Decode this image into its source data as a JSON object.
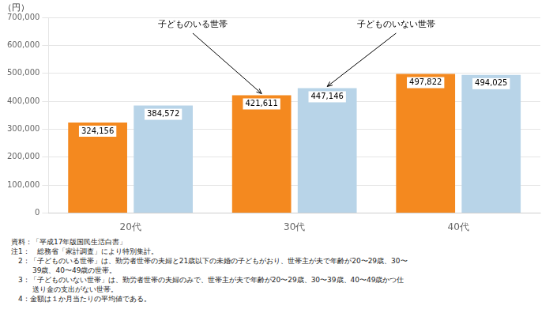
{
  "chart_data": {
    "type": "bar",
    "categories": [
      "20代",
      "30代",
      "40代"
    ],
    "series": [
      {
        "name": "子どものいる世帯",
        "color": "#F4891F",
        "values": [
          324156,
          421611,
          497822
        ],
        "value_labels": [
          "324,156",
          "421,611",
          "497,822"
        ]
      },
      {
        "name": "子どものいない世帯",
        "color": "#B8D4E8",
        "values": [
          384572,
          447146,
          494025
        ],
        "value_labels": [
          "384,572",
          "447,146",
          "494,025"
        ]
      }
    ],
    "ylabel": "（円）",
    "ylim": [
      0,
      700000
    ],
    "yticks": [
      0,
      {
        "value": 100000,
        "label": "100,000"
      },
      {
        "value": 200000,
        "label": "200,000"
      },
      {
        "value": 300000,
        "label": "300,000"
      },
      {
        "value": 400000,
        "label": "400,000"
      },
      {
        "value": 500000,
        "label": "500,000"
      },
      {
        "value": 600000,
        "label": "600,000"
      },
      {
        "value": 700000,
        "label": "700,000"
      }
    ],
    "grid": true,
    "data_labels": true,
    "annotations": [
      {
        "text": "子どものいる世帯",
        "category": "30代",
        "series": "子どものいる世帯"
      },
      {
        "text": "子どものいない世帯",
        "category": "30代",
        "series": "子どものいない世帯"
      }
    ],
    "footnotes": [
      "資料：「平成17年版国民生活白書」",
      "注1：　総務省「家計調査」により特別集計。",
      "　2：「子どものいる世帯」は、勤労者世帯の夫婦と21歳以下の未婚の子どもがおり、世帯主が夫で年齢が20〜29歳、30〜",
      "　　　39歳、40〜49歳の世帯。",
      "　3：「子どものいない世帯」は、勤労者世帯の夫婦のみで、世帯主が夫で年齢が20〜29歳、30〜39歳、40〜49歳かつ仕",
      "　　　送り金の支出がない世帯。",
      "　4：金額は１か月当たりの平均値である。"
    ]
  }
}
